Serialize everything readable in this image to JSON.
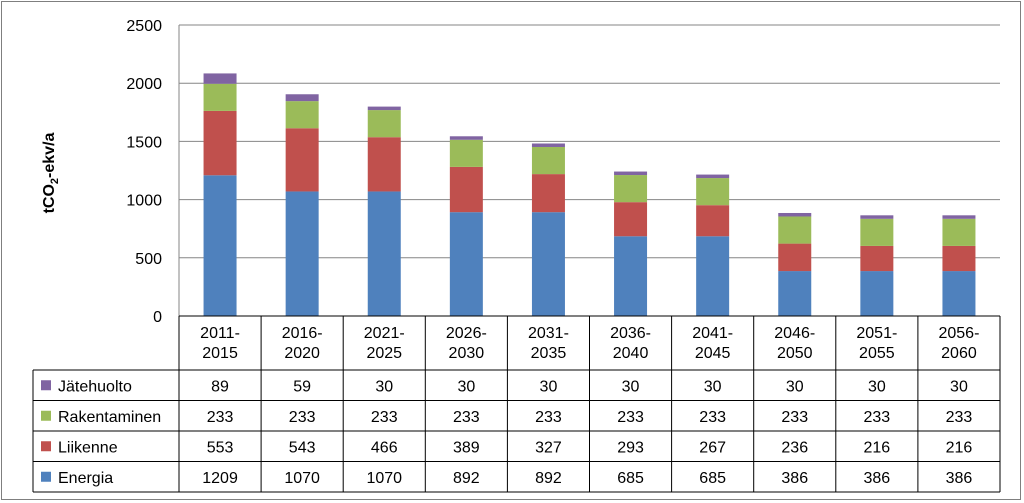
{
  "chart_data": {
    "type": "bar",
    "stacked": true,
    "categories": [
      [
        "2011-",
        "2015"
      ],
      [
        "2016-",
        "2020"
      ],
      [
        "2021-",
        "2025"
      ],
      [
        "2026-",
        "2030"
      ],
      [
        "2031-",
        "2035"
      ],
      [
        "2036-",
        "2040"
      ],
      [
        "2041-",
        "2045"
      ],
      [
        "2046-",
        "2050"
      ],
      [
        "2051-",
        "2055"
      ],
      [
        "2056-",
        "2060"
      ]
    ],
    "ylabel": {
      "pre": "tCO",
      "sub": "2",
      "post": "-ekv/a"
    },
    "ylim": [
      0,
      2500
    ],
    "yticks": [
      "0",
      "500",
      "1000",
      "1500",
      "2000",
      "2500"
    ],
    "ytick_values": [
      0,
      500,
      1000,
      1500,
      2000,
      2500
    ],
    "grid": true,
    "data_table": true,
    "series": [
      {
        "name": "Energia",
        "color": "#4f81bd",
        "values": [
          1209,
          1070,
          1070,
          892,
          892,
          685,
          685,
          386,
          386,
          386
        ]
      },
      {
        "name": "Liikenne",
        "color": "#c0504d",
        "values": [
          553,
          543,
          466,
          389,
          327,
          293,
          267,
          236,
          216,
          216
        ]
      },
      {
        "name": "Rakentaminen",
        "color": "#9bbb59",
        "values": [
          233,
          233,
          233,
          233,
          233,
          233,
          233,
          233,
          233,
          233
        ]
      },
      {
        "name": "Jätehuolto",
        "color": "#8064a2",
        "values": [
          89,
          59,
          30,
          30,
          30,
          30,
          30,
          30,
          30,
          30
        ]
      }
    ]
  }
}
